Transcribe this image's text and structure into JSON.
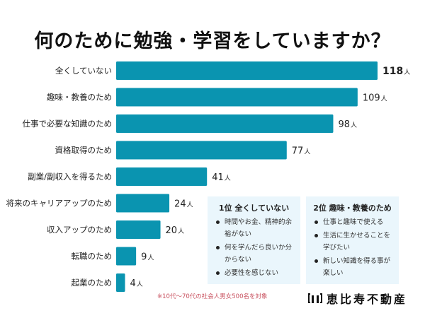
{
  "title": "何のために勉強・学習をしていますか？",
  "chart_data": {
    "type": "bar",
    "orientation": "horizontal",
    "title": "何のために勉強・学習をしていますか？",
    "xlabel": "",
    "ylabel": "",
    "unit": "人",
    "xlim": [
      0,
      118
    ],
    "grid": false,
    "categories": [
      "全くしていない",
      "趣味・教養のため",
      "仕事で必要な知識のため",
      "資格取得のため",
      "副業/副収入を得るため",
      "将来のキャリアアップのため",
      "収入アップのため",
      "転職のため",
      "起業のため"
    ],
    "values": [
      118,
      109,
      98,
      77,
      41,
      24,
      20,
      9,
      4
    ],
    "bar_color": "#0a94b0"
  },
  "info_boxes": [
    {
      "title": "1位 全くしていない",
      "items": [
        "時間やお金、精神的余裕がない",
        "何を学んだら良いか分からない",
        "必要性を感じない"
      ]
    },
    {
      "title": "2位 趣味・教養のため",
      "items": [
        "仕事と趣味で使える",
        "生活に生かせることを学びたい",
        "新しい知識を得る事が楽しい"
      ]
    }
  ],
  "footnote": "※10代〜70代の社会人男女500名を対象",
  "logo": {
    "text": "恵比寿不動産"
  },
  "colors": {
    "bar": "#0a94b0",
    "info_bg": "#eaf6fc",
    "footnote": "#c8505e"
  }
}
